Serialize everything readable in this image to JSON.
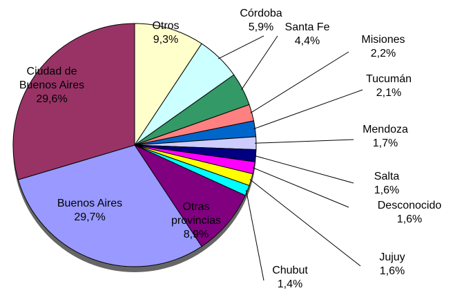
{
  "chart_data": {
    "type": "pie",
    "categories": [
      "Otros",
      "Córdoba",
      "Santa Fe",
      "Misiones",
      "Tucumán",
      "Mendoza",
      "Salta",
      "Desconocido",
      "Jujuy",
      "Chubut",
      "Otras provincias",
      "Buenos Aires",
      "Ciudad de Buenos Aires"
    ],
    "values": [
      9.3,
      5.9,
      4.4,
      2.2,
      2.1,
      1.7,
      1.6,
      1.6,
      1.6,
      1.4,
      8.9,
      29.7,
      29.6
    ],
    "value_labels": [
      "9,3%",
      "5,9%",
      "4,4%",
      "2,2%",
      "2,1%",
      "1,7%",
      "1,6%",
      "1,6%",
      "1,6%",
      "1,4%",
      "8,9%",
      "29,7%",
      "29,6%"
    ],
    "colors": [
      "#ffffcc",
      "#ccffff",
      "#339966",
      "#ff8080",
      "#0066cc",
      "#ccccff",
      "#000080",
      "#ff00ff",
      "#ffff00",
      "#00ffff",
      "#800080",
      "#9999ff",
      "#993366"
    ]
  }
}
